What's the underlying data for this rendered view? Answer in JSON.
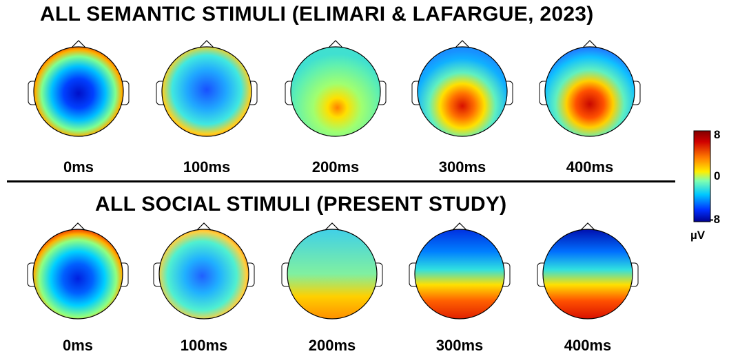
{
  "figure": {
    "rows": [
      {
        "title": "ALL SEMANTIC STIMULI (ELIMARI & LAFARGUE, 2023)",
        "maps": [
          {
            "time": "0ms",
            "mean_uv": -3
          },
          {
            "time": "100ms",
            "mean_uv": -2
          },
          {
            "time": "200ms",
            "mean_uv": 1
          },
          {
            "time": "300ms",
            "mean_uv": 2
          },
          {
            "time": "400ms",
            "mean_uv": 2
          }
        ]
      },
      {
        "title": "ALL SOCIAL STIMULI (PRESENT STUDY)",
        "maps": [
          {
            "time": "0ms",
            "mean_uv": -2
          },
          {
            "time": "100ms",
            "mean_uv": -1
          },
          {
            "time": "200ms",
            "mean_uv": 1
          },
          {
            "time": "300ms",
            "mean_uv": 1
          },
          {
            "time": "400ms",
            "mean_uv": 1
          }
        ]
      }
    ],
    "colorbar": {
      "max_label": "8",
      "mid_label": "0",
      "min_label": "-8",
      "unit": "µV",
      "colors": [
        "#00008f",
        "#0030ff",
        "#00c8ff",
        "#7fffb0",
        "#ffee00",
        "#ff8000",
        "#d00000",
        "#800000"
      ]
    }
  }
}
